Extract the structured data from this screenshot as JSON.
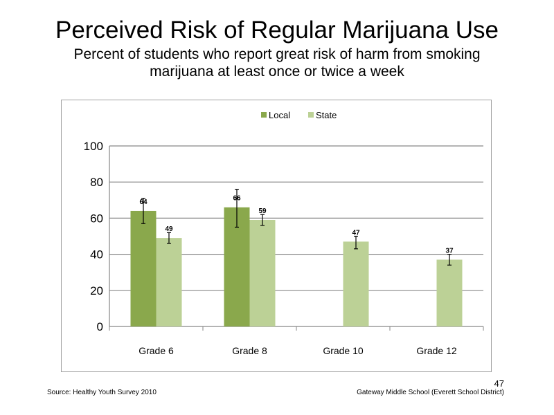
{
  "slide": {
    "title": "Perceived Risk of Regular Marijuana Use",
    "subtitle": "Percent of students who report great risk of harm from smoking marijuana at least once or twice a week",
    "source": "Source: Healthy Youth Survey 2010",
    "school": "Gateway Middle School (Everett School District)",
    "page_number": "47"
  },
  "chart_data": {
    "type": "bar",
    "categories": [
      "Grade 6",
      "Grade 8",
      "Grade 10",
      "Grade 12"
    ],
    "series": [
      {
        "name": "Local",
        "color": "#8aa84c",
        "values": [
          64,
          66,
          null,
          null
        ],
        "labels": [
          "64",
          "66",
          null,
          null
        ],
        "error_low": [
          57,
          55,
          null,
          null
        ],
        "error_high": [
          71,
          76,
          null,
          null
        ]
      },
      {
        "name": "State",
        "color": "#bcd196",
        "values": [
          49,
          59,
          47,
          37
        ],
        "labels": [
          "49",
          "59",
          "47",
          "37"
        ],
        "error_low": [
          46,
          56,
          43,
          34
        ],
        "error_high": [
          52,
          62,
          50,
          40
        ]
      }
    ],
    "ylim": [
      0,
      100
    ],
    "yticks": [
      "0",
      "20",
      "40",
      "60",
      "80",
      "100"
    ],
    "grid": true,
    "legend_position": "top"
  }
}
